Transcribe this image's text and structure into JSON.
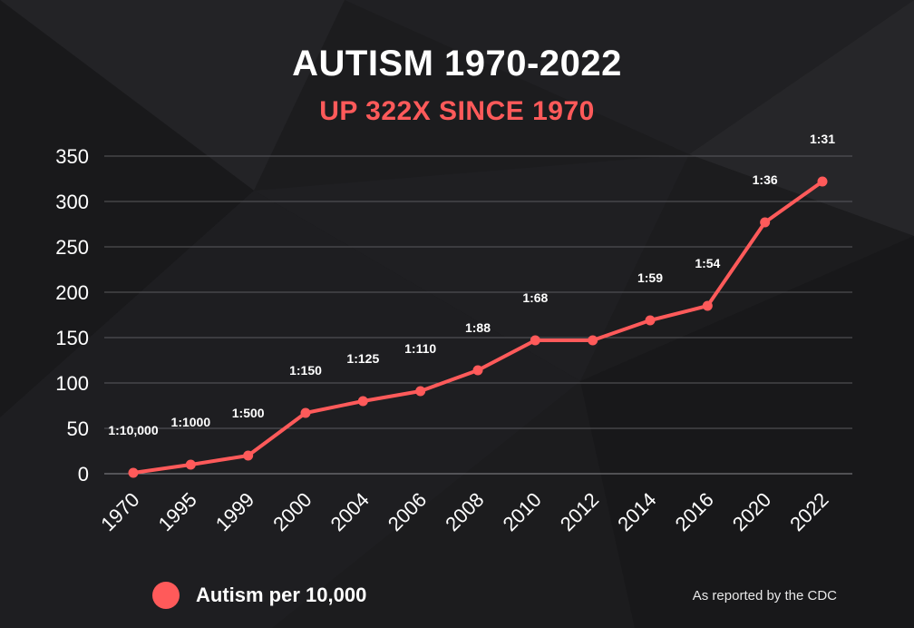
{
  "colors": {
    "background": "#1c1c1e",
    "accent": "#ff5a5a",
    "grid": "#5a5a5e",
    "text": "#ffffff"
  },
  "header": {
    "title": "AUTISM 1970-2022",
    "subtitle": "UP 322X SINCE 1970"
  },
  "legend": {
    "label": "Autism per 10,000"
  },
  "footer": {
    "source": "As reported by the CDC"
  },
  "chart_data": {
    "type": "line",
    "title": "AUTISM 1970-2022",
    "subtitle": "UP 322X SINCE 1970",
    "xlabel": "",
    "ylabel": "",
    "categories": [
      "1970",
      "1995",
      "1999",
      "2000",
      "2004",
      "2006",
      "2008",
      "2010",
      "2012",
      "2014",
      "2016",
      "2020",
      "2022"
    ],
    "series": [
      {
        "name": "Autism per 10,000",
        "values": [
          1,
          10,
          20,
          67,
          80,
          91,
          114,
          147,
          147,
          169,
          185,
          277,
          322
        ]
      }
    ],
    "data_labels": [
      "1:10,000",
      "1:1000",
      "1:500",
      "1:150",
      "1:125",
      "1:110",
      "1:88",
      "1:68",
      "",
      "1:59",
      "1:54",
      "1:36",
      "1:31"
    ],
    "ylim": [
      0,
      350
    ],
    "yticks": [
      0,
      50,
      100,
      150,
      200,
      250,
      300,
      350
    ],
    "grid": true,
    "legend_position": "bottom-left"
  }
}
